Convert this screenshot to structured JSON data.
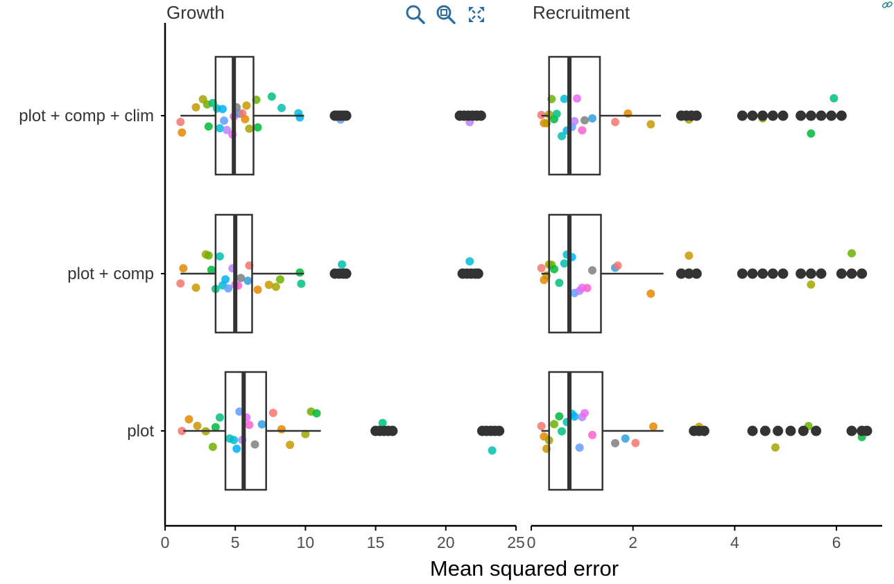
{
  "toolbar": {
    "zoom_in_icon": "magnifier-icon",
    "zoom_box_icon": "zoom-box-icon",
    "reset_icon": "expand-icon"
  },
  "colors": {
    "axis": "#000000",
    "box": "#333333",
    "jitter": [
      "#F8766D",
      "#E58700",
      "#C99800",
      "#A3A500",
      "#6BB100",
      "#00BA38",
      "#00BF7D",
      "#00C0AF",
      "#00BCD8",
      "#00B0F6",
      "#619CFF",
      "#B983FF",
      "#E76BF3",
      "#FD61D1",
      "#7F7F7F",
      "#2E9FDF"
    ]
  },
  "chart_data": {
    "type": "boxplot",
    "xlabel": "Mean squared error",
    "ylabel": "",
    "categories": [
      "plot + comp + clim",
      "plot + comp",
      "plot"
    ],
    "facets": [
      {
        "title": "Growth",
        "xlim": [
          0,
          25
        ],
        "xticks": [
          "0",
          "5",
          "10",
          "15",
          "20",
          "25"
        ],
        "boxes": [
          {
            "category": "plot + comp + clim",
            "whisker_low": 1.1,
            "q1": 3.6,
            "median": 4.9,
            "q3": 6.3,
            "whisker_high": 9.9,
            "outliers": [
              12.1,
              12.3,
              12.5,
              12.7,
              12.9,
              21.0,
              21.3,
              21.6,
              21.9,
              22.2,
              22.5
            ],
            "points": [
              1.1,
              1.2,
              2.2,
              2.7,
              3.0,
              3.1,
              3.4,
              3.7,
              3.9,
              4.1,
              4.2,
              4.4,
              4.8,
              4.9,
              5.1,
              5.3,
              5.5,
              5.7,
              5.8,
              6.0,
              6.5,
              6.6,
              7.6,
              8.3,
              9.5,
              9.6,
              12.5,
              21.7
            ]
          },
          {
            "category": "plot + comp",
            "whisker_low": 1.1,
            "q1": 3.6,
            "median": 5.0,
            "q3": 6.2,
            "whisker_high": 9.9,
            "outliers": [
              12.1,
              12.4,
              12.7,
              12.9,
              21.2,
              21.5,
              21.8,
              22.1,
              22.3
            ],
            "points": [
              1.1,
              1.3,
              2.2,
              2.9,
              3.1,
              3.3,
              3.6,
              3.9,
              4.1,
              4.3,
              4.5,
              4.8,
              5.0,
              5.2,
              5.4,
              5.9,
              6.0,
              6.6,
              7.4,
              7.9,
              8.2,
              9.6,
              9.7,
              12.6,
              21.7
            ]
          },
          {
            "category": "plot",
            "whisker_low": 1.3,
            "q1": 4.3,
            "median": 5.6,
            "q3": 7.2,
            "whisker_high": 11.1,
            "outliers": [
              15.0,
              15.3,
              15.6,
              15.9,
              16.2,
              22.6,
              22.9,
              23.2,
              23.5,
              23.8
            ],
            "points": [
              1.2,
              1.7,
              2.3,
              2.9,
              3.4,
              3.6,
              3.9,
              4.6,
              4.9,
              5.1,
              5.3,
              5.5,
              5.8,
              6.0,
              6.4,
              6.9,
              7.7,
              8.3,
              8.9,
              10.0,
              10.4,
              10.8,
              15.5,
              23.3
            ]
          }
        ]
      },
      {
        "title": "Recruitment",
        "xlim": [
          0,
          6.9
        ],
        "xticks": [
          "0",
          "2",
          "4",
          "6"
        ],
        "boxes": [
          {
            "category": "plot + comp + clim",
            "whisker_low": 0.2,
            "q1": 0.35,
            "median": 0.75,
            "q3": 1.35,
            "whisker_high": 2.55,
            "outliers": [
              2.95,
              3.05,
              3.15,
              3.25,
              4.15,
              4.35,
              4.55,
              4.75,
              4.95,
              5.3,
              5.5,
              5.7,
              5.9,
              6.1
            ],
            "points": [
              0.2,
              0.25,
              0.3,
              0.35,
              0.4,
              0.45,
              0.5,
              0.6,
              0.65,
              0.7,
              0.8,
              0.85,
              0.9,
              1.0,
              1.05,
              1.2,
              1.65,
              1.9,
              2.35,
              3.1,
              4.55,
              5.5,
              5.95
            ]
          },
          {
            "category": "plot + comp",
            "whisker_low": 0.2,
            "q1": 0.35,
            "median": 0.75,
            "q3": 1.37,
            "whisker_high": 2.6,
            "outliers": [
              2.95,
              3.1,
              3.25,
              4.15,
              4.35,
              4.55,
              4.75,
              4.95,
              5.3,
              5.5,
              5.7,
              6.1,
              6.3,
              6.5
            ],
            "points": [
              0.2,
              0.25,
              0.3,
              0.35,
              0.4,
              0.45,
              0.55,
              0.65,
              0.7,
              0.8,
              0.85,
              0.95,
              1.0,
              1.1,
              1.2,
              1.65,
              1.7,
              2.35,
              3.1,
              5.5,
              6.3
            ]
          },
          {
            "category": "plot",
            "whisker_low": 0.2,
            "q1": 0.35,
            "median": 0.75,
            "q3": 1.4,
            "whisker_high": 2.6,
            "outliers": [
              3.2,
              3.3,
              3.4,
              4.35,
              4.6,
              4.85,
              5.1,
              5.35,
              5.6,
              6.3,
              6.5,
              6.6
            ],
            "points": [
              0.2,
              0.25,
              0.3,
              0.35,
              0.45,
              0.55,
              0.6,
              0.7,
              0.8,
              0.85,
              0.95,
              1.0,
              1.05,
              1.2,
              1.65,
              1.85,
              2.05,
              2.4,
              3.3,
              4.8,
              5.45,
              6.5
            ]
          }
        ]
      }
    ]
  }
}
